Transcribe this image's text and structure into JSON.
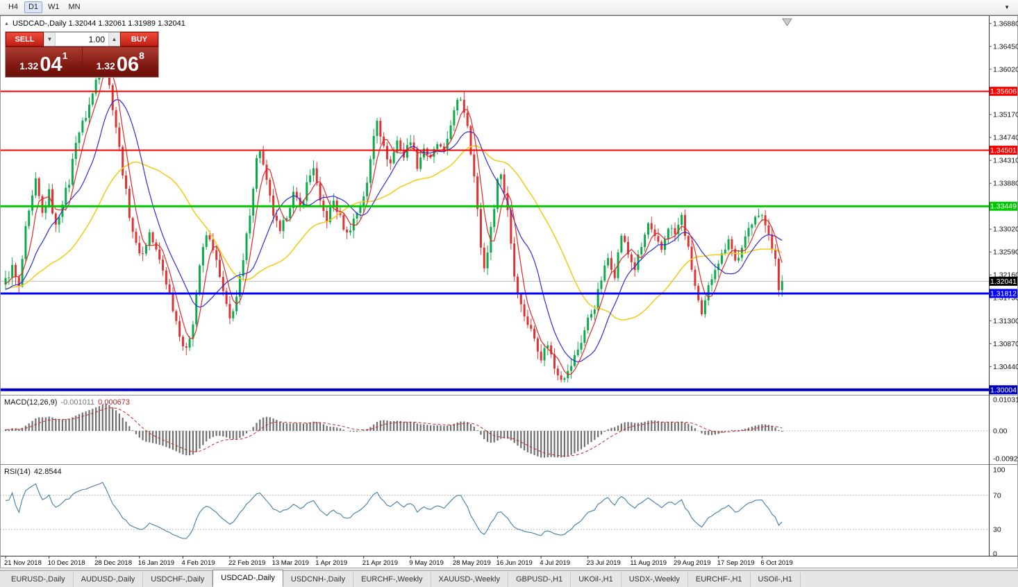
{
  "toolbar": {
    "timeframes": [
      {
        "label": "H4",
        "active": false
      },
      {
        "label": "D1",
        "active": true
      },
      {
        "label": "W1",
        "active": false
      },
      {
        "label": "MN",
        "active": false
      }
    ]
  },
  "icons": {
    "title_arrow": "▲",
    "volume_down": "▼",
    "volume_up": "▲",
    "toolbar_dropdown": "▼"
  },
  "chart_header": {
    "title": "USDCAD-,Daily 1.32044 1.32061 1.31989 1.32041"
  },
  "trade_panel": {
    "sell_label": "SELL",
    "buy_label": "BUY",
    "volume": "1.00",
    "sell_price": {
      "big": "1.32",
      "pips": "04",
      "sup": "1"
    },
    "buy_price": {
      "big": "1.32",
      "pips": "06",
      "sup": "8"
    }
  },
  "price_scale_labels": [
    "1.36880",
    "1.36450",
    "1.36020",
    "1.35170",
    "1.34740",
    "1.34310",
    "1.33880",
    "1.33020",
    "1.32590",
    "1.32160",
    "1.31730",
    "1.31300",
    "1.30870",
    "1.30440"
  ],
  "macd_panel": {
    "name": "MACD(12,26,9)",
    "value": "-0.001011",
    "signal": "0.000673",
    "scale": [
      "0.010311",
      "0.00",
      "-0.009203"
    ]
  },
  "rsi_panel": {
    "name": "RSI(14)",
    "value": "42.8544",
    "scale": [
      "100",
      "70",
      "30",
      "0"
    ],
    "levels": [
      70,
      30
    ]
  },
  "tabs": [
    {
      "label": "EURUSD-,Daily",
      "active": false
    },
    {
      "label": "AUDUSD-,Daily",
      "active": false
    },
    {
      "label": "USDCHF-,Daily",
      "active": false
    },
    {
      "label": "USDCAD-,Daily",
      "active": true
    },
    {
      "label": "USDCNH-,Daily",
      "active": false
    },
    {
      "label": "EURCHF-,Weekly",
      "active": false
    },
    {
      "label": "XAUUSD-,Weekly",
      "active": false
    },
    {
      "label": "GBPUSD-,H1",
      "active": false
    },
    {
      "label": "UKOil-,H1",
      "active": false
    },
    {
      "label": "USDX-,Weekly",
      "active": false
    },
    {
      "label": "EURCHF-,H1",
      "active": false
    },
    {
      "label": "USOil-,H1",
      "active": false
    }
  ],
  "chart_data": {
    "type": "candlestick",
    "symbol": "USDCAD",
    "timeframe": "Daily",
    "ohlc_display": {
      "open": "1.32044",
      "high": "1.32061",
      "low": "1.31989",
      "close": "1.32041"
    },
    "last_close": 1.32041,
    "visible_price_range": [
      1.2991,
      1.3702
    ],
    "horizontal_lines": [
      {
        "price": 1.35606,
        "label": "1.35606",
        "color": "#ff0000",
        "width": 2
      },
      {
        "price": 1.34501,
        "label": "1.34501",
        "color": "#ff0000",
        "width": 2
      },
      {
        "price": 1.33449,
        "label": "1.33449",
        "color": "#00c800",
        "width": 3
      },
      {
        "price": 1.31812,
        "label": "1.31812",
        "color": "#0000ff",
        "width": 3
      },
      {
        "price": 1.30004,
        "label": "1.30004",
        "color": "#0000bb",
        "width": 4
      }
    ],
    "bid": {
      "price": 1.32041,
      "label": "1.32041",
      "tag_color": "#000000"
    },
    "time_axis": [
      [
        0,
        "21 Nov 2018"
      ],
      [
        13,
        "10 Dec 2018"
      ],
      [
        27,
        "28 Dec 2018"
      ],
      [
        40,
        "16 Jan 2019"
      ],
      [
        53,
        "4 Feb 2019"
      ],
      [
        67,
        "22 Feb 2019"
      ],
      [
        80,
        "13 Mar 2019"
      ],
      [
        93,
        "1 Apr 2019"
      ],
      [
        107,
        "21 Apr 2019"
      ],
      [
        121,
        "9 May 2019"
      ],
      [
        134,
        "28 May 2019"
      ],
      [
        147,
        "16 Jun 2019"
      ],
      [
        160,
        "4 Jul 2019"
      ],
      [
        174,
        "23 Jul 2019"
      ],
      [
        187,
        "11 Aug 2019"
      ],
      [
        200,
        "29 Aug 2019"
      ],
      [
        213,
        "17 Sep 2019"
      ],
      [
        226,
        "6 Oct 2019"
      ]
    ],
    "close_path_anchors": [
      [
        -45,
        1.314
      ],
      [
        -35,
        1.317
      ],
      [
        -25,
        1.319
      ],
      [
        -15,
        1.3205
      ],
      [
        -8,
        1.3175
      ],
      [
        -4,
        1.319
      ],
      [
        0,
        1.3205
      ],
      [
        2,
        1.323
      ],
      [
        4,
        1.319
      ],
      [
        6,
        1.33
      ],
      [
        9,
        1.339
      ],
      [
        11,
        1.333
      ],
      [
        13,
        1.337
      ],
      [
        15,
        1.3305
      ],
      [
        17,
        1.3355
      ],
      [
        19,
        1.339
      ],
      [
        21,
        1.347
      ],
      [
        24,
        1.3515
      ],
      [
        26,
        1.3555
      ],
      [
        28,
        1.361
      ],
      [
        29,
        1.3648
      ],
      [
        30,
        1.3615
      ],
      [
        31,
        1.357
      ],
      [
        33,
        1.3495
      ],
      [
        35,
        1.341
      ],
      [
        37,
        1.333
      ],
      [
        39,
        1.327
      ],
      [
        41,
        1.3255
      ],
      [
        43,
        1.3295
      ],
      [
        45,
        1.326
      ],
      [
        47,
        1.3225
      ],
      [
        49,
        1.318
      ],
      [
        51,
        1.313
      ],
      [
        53,
        1.3085
      ],
      [
        54,
        1.3072
      ],
      [
        56,
        1.313
      ],
      [
        58,
        1.3235
      ],
      [
        60,
        1.329
      ],
      [
        62,
        1.3268
      ],
      [
        64,
        1.321
      ],
      [
        66,
        1.3155
      ],
      [
        67,
        1.3132
      ],
      [
        69,
        1.3175
      ],
      [
        71,
        1.324
      ],
      [
        73,
        1.3335
      ],
      [
        75,
        1.3432
      ],
      [
        76,
        1.3452
      ],
      [
        78,
        1.3388
      ],
      [
        80,
        1.333
      ],
      [
        82,
        1.3292
      ],
      [
        84,
        1.333
      ],
      [
        86,
        1.3368
      ],
      [
        88,
        1.334
      ],
      [
        90,
        1.3386
      ],
      [
        92,
        1.342
      ],
      [
        94,
        1.3348
      ],
      [
        96,
        1.332
      ],
      [
        98,
        1.3355
      ],
      [
        100,
        1.3322
      ],
      [
        102,
        1.3292
      ],
      [
        104,
        1.332
      ],
      [
        106,
        1.3348
      ],
      [
        108,
        1.3385
      ],
      [
        110,
        1.348
      ],
      [
        111,
        1.3512
      ],
      [
        113,
        1.3452
      ],
      [
        115,
        1.3425
      ],
      [
        117,
        1.3468
      ],
      [
        119,
        1.3438
      ],
      [
        121,
        1.3472
      ],
      [
        123,
        1.3422
      ],
      [
        125,
        1.3455
      ],
      [
        127,
        1.3432
      ],
      [
        129,
        1.3462
      ],
      [
        131,
        1.3442
      ],
      [
        133,
        1.3502
      ],
      [
        135,
        1.3538
      ],
      [
        136,
        1.3548
      ],
      [
        138,
        1.35
      ],
      [
        140,
        1.34
      ],
      [
        142,
        1.327
      ],
      [
        143,
        1.3228
      ],
      [
        145,
        1.33
      ],
      [
        147,
        1.3395
      ],
      [
        148,
        1.3405
      ],
      [
        150,
        1.334
      ],
      [
        152,
        1.3215
      ],
      [
        154,
        1.3158
      ],
      [
        156,
        1.3125
      ],
      [
        158,
        1.3098
      ],
      [
        160,
        1.3062
      ],
      [
        162,
        1.3088
      ],
      [
        164,
        1.3042
      ],
      [
        166,
        1.3025
      ],
      [
        168,
        1.3032
      ],
      [
        170,
        1.3062
      ],
      [
        172,
        1.3092
      ],
      [
        174,
        1.3132
      ],
      [
        176,
        1.3158
      ],
      [
        178,
        1.3208
      ],
      [
        180,
        1.3248
      ],
      [
        182,
        1.3218
      ],
      [
        184,
        1.3292
      ],
      [
        186,
        1.3255
      ],
      [
        188,
        1.3228
      ],
      [
        190,
        1.3268
      ],
      [
        192,
        1.3312
      ],
      [
        194,
        1.3282
      ],
      [
        196,
        1.3262
      ],
      [
        198,
        1.3308
      ],
      [
        200,
        1.3292
      ],
      [
        202,
        1.3325
      ],
      [
        204,
        1.3262
      ],
      [
        206,
        1.3195
      ],
      [
        208,
        1.3135
      ],
      [
        210,
        1.3192
      ],
      [
        212,
        1.3232
      ],
      [
        214,
        1.3252
      ],
      [
        216,
        1.3288
      ],
      [
        218,
        1.3242
      ],
      [
        220,
        1.3262
      ],
      [
        222,
        1.3302
      ],
      [
        224,
        1.3332
      ],
      [
        226,
        1.3322
      ],
      [
        228,
        1.3298
      ],
      [
        230,
        1.3242
      ],
      [
        231,
        1.3182
      ],
      [
        232,
        1.32041
      ]
    ],
    "moving_averages": [
      {
        "period": 5,
        "color_key": "ma_fast"
      },
      {
        "period": 13,
        "color_key": "ma_mid"
      },
      {
        "period": 34,
        "color_key": "ma_slow"
      }
    ],
    "indicators": {
      "macd": {
        "fast": 12,
        "slow": 26,
        "signal": 9,
        "value": -0.001011,
        "signal_value": 0.000673
      },
      "rsi": {
        "period": 14,
        "value": 42.8544
      }
    },
    "colors": {
      "up": "#0caa4a",
      "down": "#dd3333",
      "ma_fast": "#e02828",
      "ma_mid": "#2b2bd4",
      "ma_slow": "#f0cd1e",
      "macd_hist": "#6e6e6e",
      "macd_signal": "#cc2222",
      "rsi_line": "#3f7cad",
      "bid_line": "#bbbbbb"
    }
  }
}
